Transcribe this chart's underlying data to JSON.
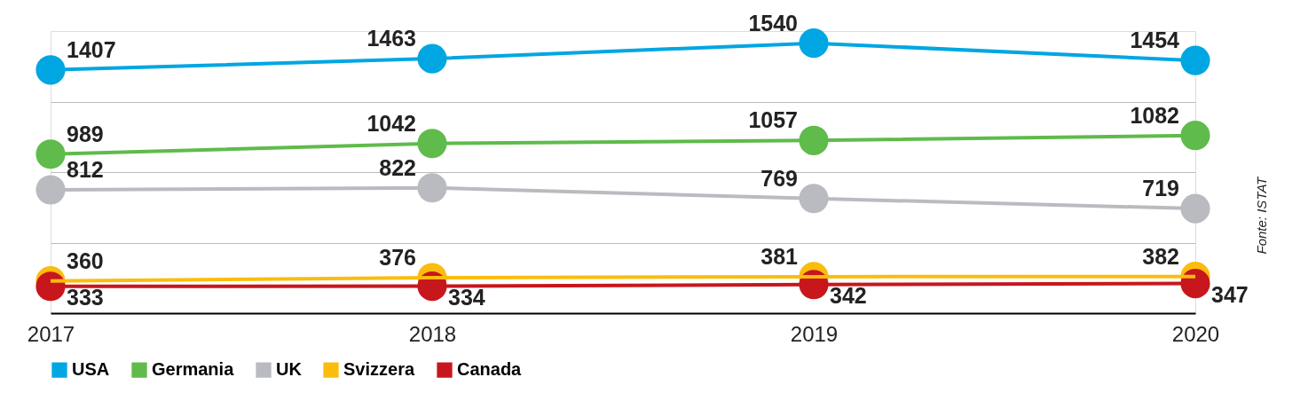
{
  "chart_data": {
    "type": "line",
    "categories": [
      "2017",
      "2018",
      "2019",
      "2020"
    ],
    "series": [
      {
        "name": "USA",
        "color": "#00a6e2",
        "values": [
          1407,
          1463,
          1540,
          1454
        ]
      },
      {
        "name": "Germania",
        "color": "#5fbb4b",
        "values": [
          989,
          1042,
          1057,
          1082
        ]
      },
      {
        "name": "UK",
        "color": "#b9bbc0",
        "values": [
          812,
          822,
          769,
          719
        ]
      },
      {
        "name": "Svizzera",
        "color": "#fbbc0e",
        "values": [
          360,
          376,
          381,
          382
        ]
      },
      {
        "name": "Canada",
        "color": "#c8161d",
        "values": [
          333,
          334,
          342,
          347
        ]
      }
    ],
    "ylim": [
      200,
      1600
    ],
    "yticks": [
      {
        "value": 550,
        "label": null
      },
      {
        "value": 900,
        "label": null
      },
      {
        "value": 1250,
        "label": null
      }
    ],
    "grid": "y",
    "legend": "bottom",
    "marker": "circle",
    "line_style": "solid",
    "data_labels": true,
    "tick_labels": "x",
    "annotations": [
      "Fonte: ISTAT"
    ]
  }
}
